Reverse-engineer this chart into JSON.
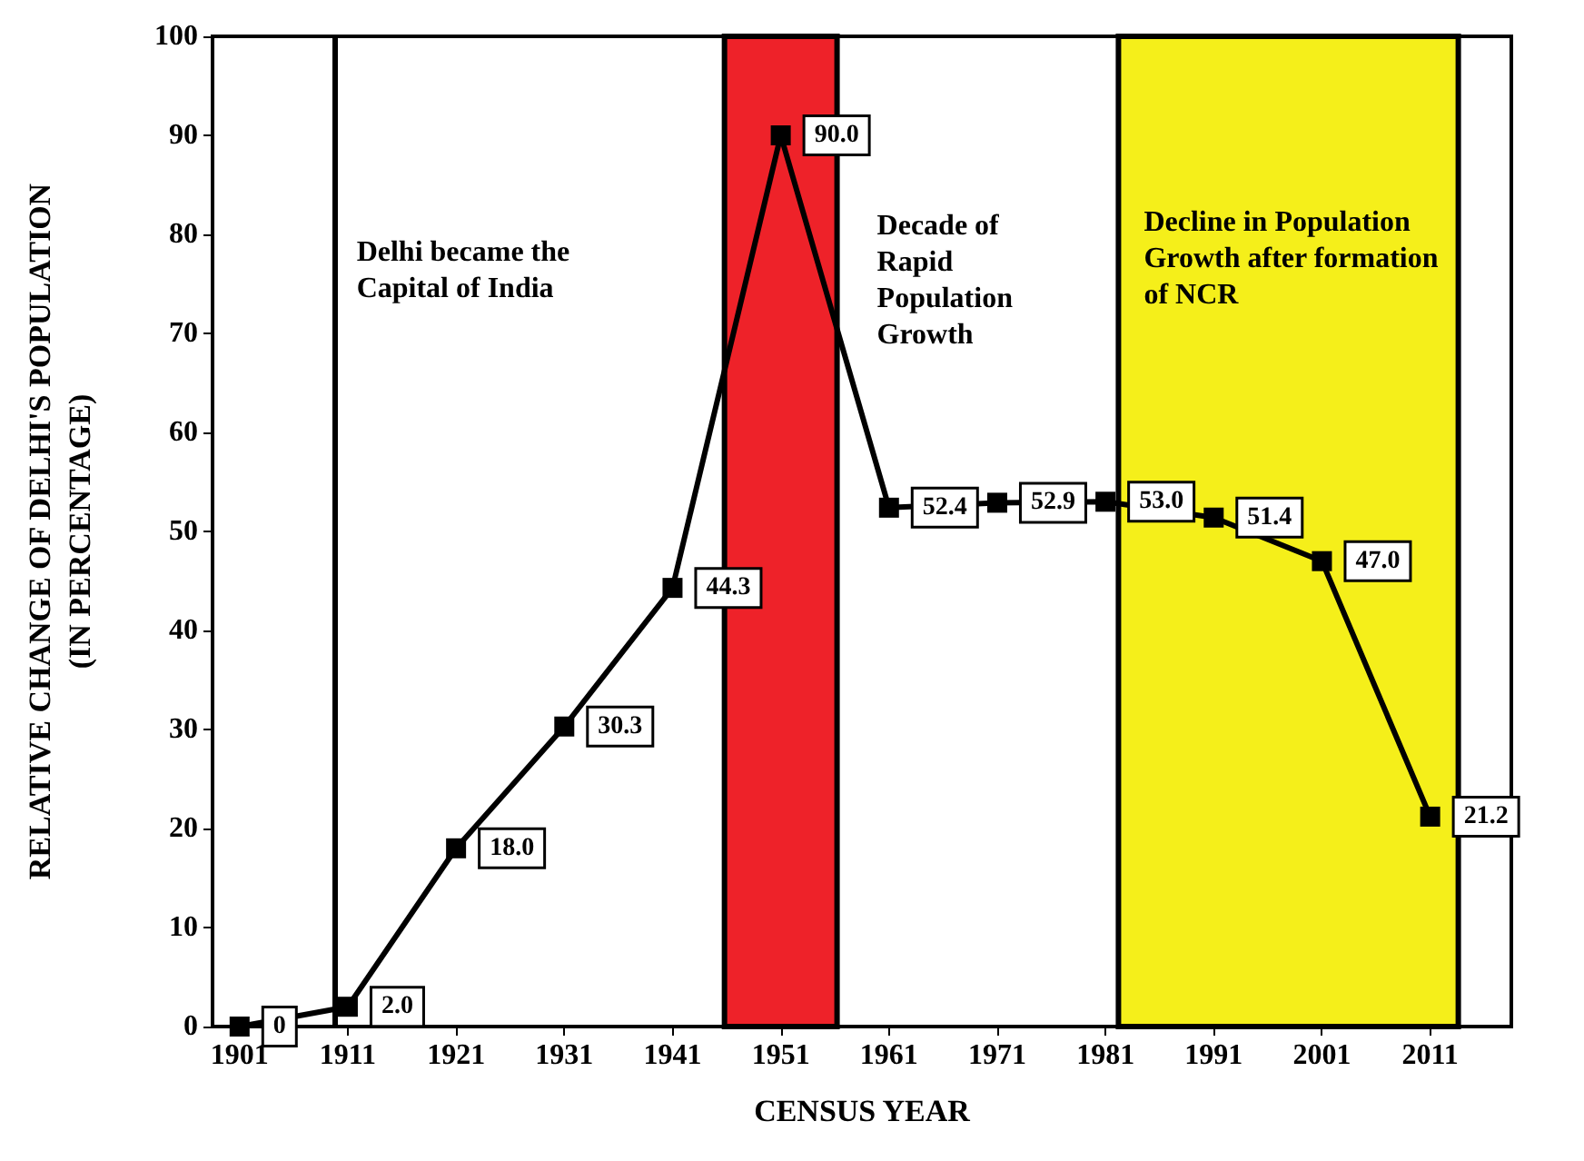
{
  "chart_data": {
    "type": "line",
    "xlabel": "CENSUS YEAR",
    "ylabel": "RELATIVE CHANGE OF DELHI'S POPULATION\n(IN PERCENTAGE)",
    "x": [
      1901,
      1911,
      1921,
      1931,
      1941,
      1951,
      1961,
      1971,
      1981,
      1991,
      2001,
      2011
    ],
    "series": [
      {
        "color": "#000000",
        "values": [
          0,
          2.0,
          18.0,
          30.3,
          44.3,
          90.0,
          52.4,
          52.9,
          53.0,
          51.4,
          47.0,
          21.2
        ],
        "value_labels": [
          "0",
          "2.0",
          "18.0",
          "30.3",
          "44.3",
          "90.0",
          "52.4",
          "52.9",
          "53.0",
          "51.4",
          "47.0",
          "21.2"
        ]
      }
    ],
    "xlim": [
      1898.5,
      2018.5
    ],
    "xticks": [
      1901,
      1911,
      1921,
      1931,
      1941,
      1951,
      1961,
      1971,
      1981,
      1991,
      2001,
      2011
    ],
    "ylim": [
      0,
      100
    ],
    "yticks": [
      0,
      10,
      20,
      30,
      40,
      50,
      60,
      70,
      80,
      90,
      100
    ],
    "ref_lines": [
      {
        "axis": "x",
        "value": 1909.8,
        "label": "Delhi became the Capital of India",
        "color": "#000000",
        "line_style": "solid"
      }
    ],
    "bands": [
      {
        "axis": "x",
        "from": 1945.8,
        "to": 1956.2,
        "label": "Decade of Rapid Population Growth",
        "color": "#ee2229"
      },
      {
        "axis": "x",
        "from": 1982.2,
        "to": 2013.6,
        "label": "Decline in Population Growth after formation of NCR",
        "color": "#f5ef1a"
      }
    ],
    "marker": "square",
    "line_style": "solid"
  }
}
